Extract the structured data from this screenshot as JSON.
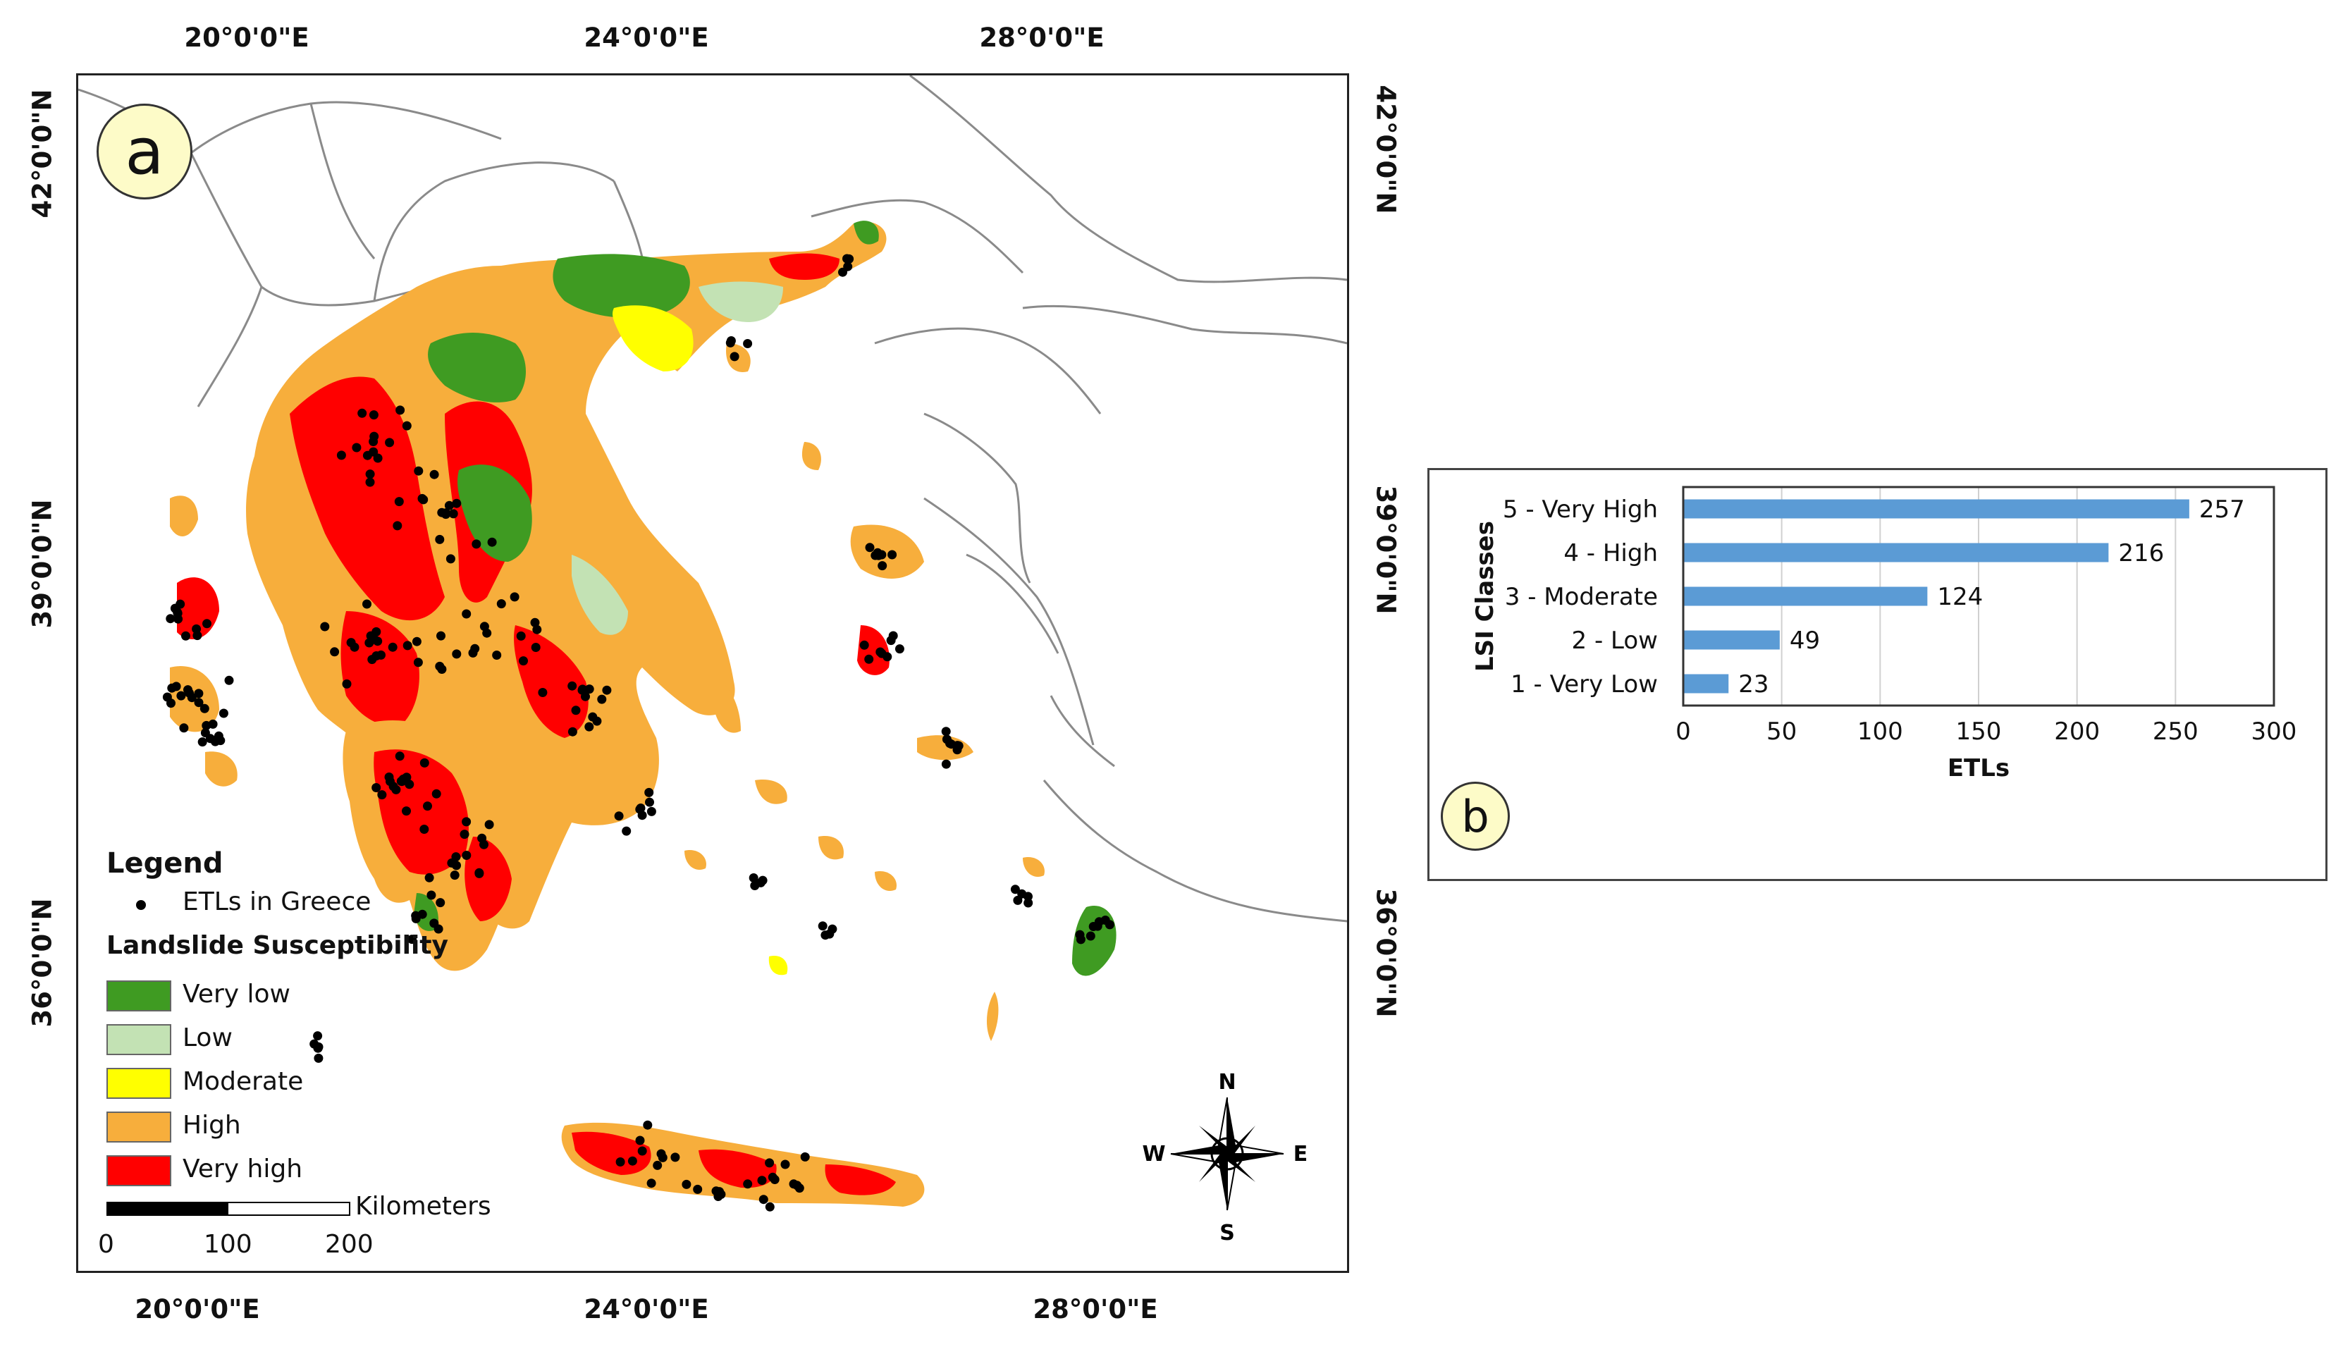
{
  "panels": {
    "a_label": "a",
    "b_label": "b"
  },
  "map": {
    "lon_labels": [
      "20°0'0\"E",
      "24°0'0\"E",
      "28°0'0\"E"
    ],
    "lat_labels": [
      "42°0'0\"N",
      "39°0'0\"N",
      "36°0'0\"N"
    ],
    "compass": {
      "n": "N",
      "s": "S",
      "e": "E",
      "w": "W"
    },
    "legend": {
      "title": "Legend",
      "points_label": "ETLs in Greece",
      "susceptibility_title": "Landslide Susceptibility",
      "classes": [
        {
          "label": "Very low",
          "color": "#3f9b22"
        },
        {
          "label": "Low",
          "color": "#c3e2b4"
        },
        {
          "label": "Moderate",
          "color": "#ffff00"
        },
        {
          "label": "High",
          "color": "#f7ae3c"
        },
        {
          "label": "Very high",
          "color": "#ff0000"
        }
      ]
    },
    "scalebar": {
      "unit": "Kilometers",
      "ticks": [
        "0",
        "100",
        "200"
      ]
    }
  },
  "chart_data": {
    "type": "bar",
    "orientation": "horizontal",
    "categories": [
      "5 - Very High",
      "4 - High",
      "3 - Moderate",
      "2 - Low",
      "1 - Very Low"
    ],
    "values": [
      257,
      216,
      124,
      49,
      23
    ],
    "xlabel": "ETLs",
    "ylabel": "LSI Classes",
    "xlim": [
      0,
      300
    ],
    "xticks": [
      0,
      50,
      100,
      150,
      200,
      250,
      300
    ],
    "bar_color": "#5b9bd5",
    "grid": "vertical"
  }
}
